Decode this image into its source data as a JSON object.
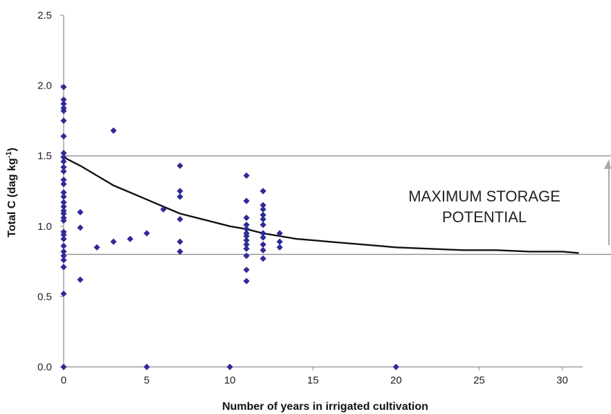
{
  "chart_data": {
    "type": "scatter",
    "title": "",
    "xlabel": "Number of years in irrigated cultivation",
    "ylabel_main": "Total C (dag kg",
    "ylabel_sup": "-1",
    "ylabel_end": ")",
    "xlim": [
      0,
      31
    ],
    "ylim": [
      0,
      2.5
    ],
    "xticks": [
      0,
      5,
      10,
      15,
      20,
      25,
      30
    ],
    "xtick_labels": [
      "0",
      "5",
      "10",
      "15",
      "20",
      "25",
      "30"
    ],
    "yticks": [
      0,
      0.5,
      1.0,
      1.5,
      2.0,
      2.5
    ],
    "ytick_labels": [
      "0.0",
      "0.5",
      "1.0",
      "1.5",
      "2.0",
      "2.5"
    ],
    "grid": false,
    "marker_color": "#2e2a96",
    "curve_color": "#111111",
    "reference_line_color": "#8c8c8c",
    "reference_lines": [
      1.5,
      0.8
    ],
    "annotation_lines": [
      "MAXIMUM STORAGE",
      "POTENTIAL"
    ],
    "points": [
      [
        0,
        1.99
      ],
      [
        0,
        1.9
      ],
      [
        0,
        1.87
      ],
      [
        0,
        1.84
      ],
      [
        0,
        1.82
      ],
      [
        0,
        1.75
      ],
      [
        0,
        1.64
      ],
      [
        0,
        1.52
      ],
      [
        0,
        1.49
      ],
      [
        0,
        1.46
      ],
      [
        0,
        1.42
      ],
      [
        0,
        1.39
      ],
      [
        0,
        1.33
      ],
      [
        0,
        1.3
      ],
      [
        0,
        1.24
      ],
      [
        0,
        1.21
      ],
      [
        0,
        1.17
      ],
      [
        0,
        1.14
      ],
      [
        0,
        1.11
      ],
      [
        0,
        1.09
      ],
      [
        0,
        1.06
      ],
      [
        0,
        1.04
      ],
      [
        0,
        0.96
      ],
      [
        0,
        0.94
      ],
      [
        0,
        0.91
      ],
      [
        0,
        0.86
      ],
      [
        0,
        0.82
      ],
      [
        0,
        0.79
      ],
      [
        0,
        0.76
      ],
      [
        0,
        0.71
      ],
      [
        0,
        0.52
      ],
      [
        0,
        0.0
      ],
      [
        1,
        1.1
      ],
      [
        1,
        0.99
      ],
      [
        1,
        0.62
      ],
      [
        2,
        0.85
      ],
      [
        3,
        1.68
      ],
      [
        3,
        0.89
      ],
      [
        4,
        0.91
      ],
      [
        5,
        0.95
      ],
      [
        5,
        0.0
      ],
      [
        6,
        1.12
      ],
      [
        7,
        1.43
      ],
      [
        7,
        1.25
      ],
      [
        7,
        1.21
      ],
      [
        7,
        1.05
      ],
      [
        7,
        0.89
      ],
      [
        7,
        0.82
      ],
      [
        10,
        0.0
      ],
      [
        11,
        1.36
      ],
      [
        11,
        1.18
      ],
      [
        11,
        1.06
      ],
      [
        11,
        1.01
      ],
      [
        11,
        0.98
      ],
      [
        11,
        0.95
      ],
      [
        11,
        0.93
      ],
      [
        11,
        0.9
      ],
      [
        11,
        0.87
      ],
      [
        11,
        0.84
      ],
      [
        11,
        0.79
      ],
      [
        11,
        0.69
      ],
      [
        11,
        0.61
      ],
      [
        12,
        1.25
      ],
      [
        12,
        1.15
      ],
      [
        12,
        1.12
      ],
      [
        12,
        1.08
      ],
      [
        12,
        1.05
      ],
      [
        12,
        1.01
      ],
      [
        12,
        0.95
      ],
      [
        12,
        0.92
      ],
      [
        12,
        0.87
      ],
      [
        12,
        0.83
      ],
      [
        12,
        0.77
      ],
      [
        13,
        0.95
      ],
      [
        13,
        0.89
      ],
      [
        13,
        0.85
      ],
      [
        20,
        0.0
      ]
    ],
    "curve": [
      [
        0,
        1.49
      ],
      [
        1,
        1.43
      ],
      [
        2,
        1.36
      ],
      [
        3,
        1.29
      ],
      [
        4,
        1.24
      ],
      [
        5,
        1.19
      ],
      [
        6,
        1.14
      ],
      [
        7,
        1.09
      ],
      [
        8,
        1.06
      ],
      [
        9,
        1.03
      ],
      [
        10,
        1.0
      ],
      [
        11,
        0.98
      ],
      [
        12,
        0.95
      ],
      [
        13,
        0.93
      ],
      [
        14,
        0.91
      ],
      [
        15,
        0.9
      ],
      [
        16,
        0.89
      ],
      [
        17,
        0.88
      ],
      [
        18,
        0.87
      ],
      [
        19,
        0.86
      ],
      [
        20,
        0.85
      ],
      [
        22,
        0.84
      ],
      [
        24,
        0.83
      ],
      [
        26,
        0.83
      ],
      [
        28,
        0.82
      ],
      [
        30,
        0.82
      ],
      [
        31,
        0.81
      ]
    ]
  }
}
